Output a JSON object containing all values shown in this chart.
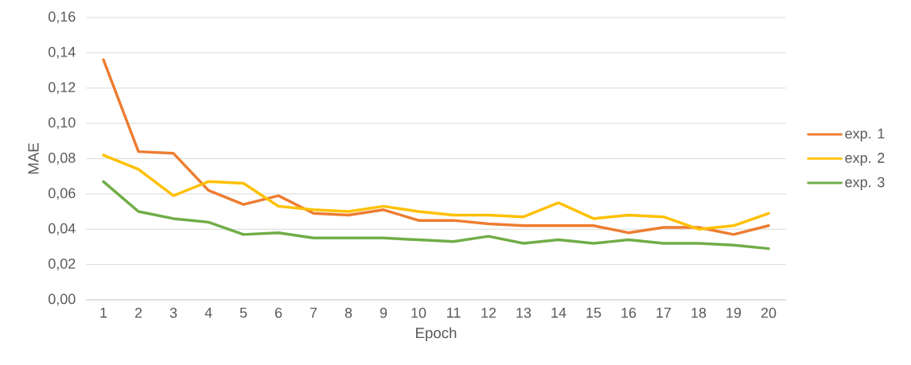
{
  "chart_data": {
    "type": "line",
    "xlabel": "Epoch",
    "ylabel": "MAE",
    "categories": [
      "1",
      "2",
      "3",
      "4",
      "5",
      "6",
      "7",
      "8",
      "9",
      "10",
      "11",
      "12",
      "13",
      "14",
      "15",
      "16",
      "17",
      "18",
      "19",
      "20"
    ],
    "series": [
      {
        "name": "exp. 1",
        "color": "#ed7d31",
        "values": [
          0.136,
          0.084,
          0.083,
          0.062,
          0.054,
          0.059,
          0.049,
          0.048,
          0.051,
          0.045,
          0.045,
          0.043,
          0.042,
          0.042,
          0.042,
          0.038,
          0.041,
          0.041,
          0.037,
          0.042
        ]
      },
      {
        "name": "exp. 2",
        "color": "#ffc000",
        "values": [
          0.082,
          0.074,
          0.059,
          0.067,
          0.066,
          0.053,
          0.051,
          0.05,
          0.053,
          0.05,
          0.048,
          0.048,
          0.047,
          0.055,
          0.046,
          0.048,
          0.047,
          0.04,
          0.042,
          0.049
        ]
      },
      {
        "name": "exp. 3",
        "color": "#70ad47",
        "values": [
          0.067,
          0.05,
          0.046,
          0.044,
          0.037,
          0.038,
          0.035,
          0.035,
          0.035,
          0.034,
          0.033,
          0.036,
          0.032,
          0.034,
          0.032,
          0.034,
          0.032,
          0.032,
          0.031,
          0.029
        ]
      }
    ],
    "ylim": [
      0,
      0.16
    ],
    "yticks": [
      {
        "value": 0,
        "label": "0,00"
      },
      {
        "value": 0.02,
        "label": "0,02"
      },
      {
        "value": 0.04,
        "label": "0,04"
      },
      {
        "value": 0.06,
        "label": "0,06"
      },
      {
        "value": 0.08,
        "label": "0,08"
      },
      {
        "value": 0.1,
        "label": "0,10"
      },
      {
        "value": 0.12,
        "label": "0,12"
      },
      {
        "value": 0.14,
        "label": "0,14"
      },
      {
        "value": 0.16,
        "label": "0,16"
      }
    ],
    "grid": "y",
    "legend": "right",
    "marker": "none",
    "line_style": "solid"
  }
}
